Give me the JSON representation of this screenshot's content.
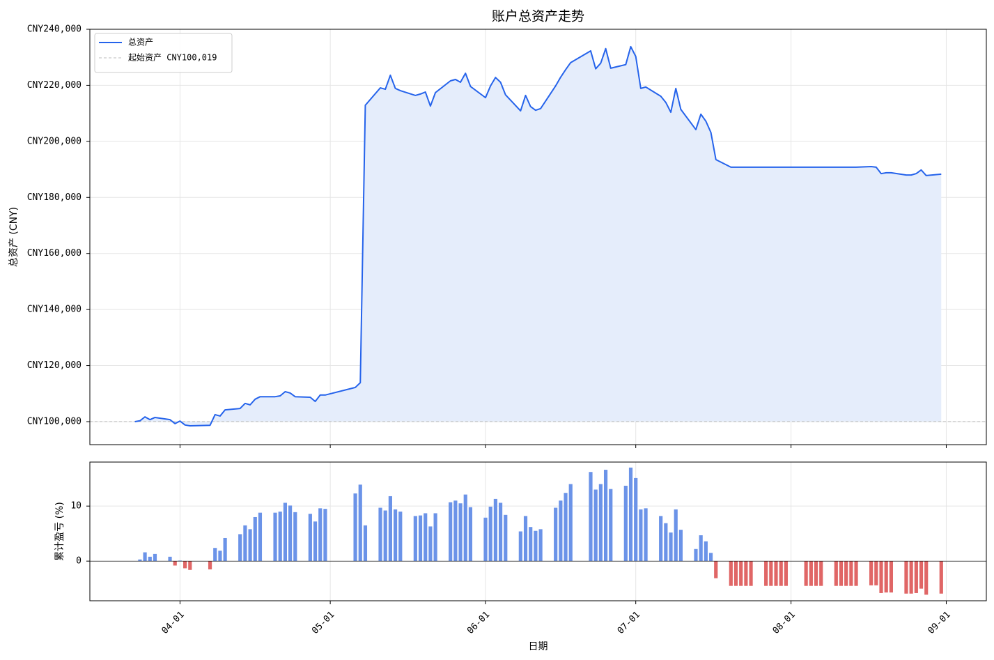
{
  "chart_data": [
    {
      "type": "line",
      "title": "账户总资产走势",
      "y_label": "总资产 (CNY)",
      "x": [
        "03-23",
        "03-24",
        "03-25",
        "03-26",
        "03-27",
        "03-30",
        "03-31",
        "04-01",
        "04-02",
        "04-03",
        "04-07",
        "04-08",
        "04-09",
        "04-10",
        "04-13",
        "04-14",
        "04-15",
        "04-16",
        "04-17",
        "04-20",
        "04-21",
        "04-22",
        "04-23",
        "04-24",
        "04-27",
        "04-28",
        "04-29",
        "04-30",
        "05-06",
        "05-07",
        "05-08",
        "05-11",
        "05-12",
        "05-13",
        "05-14",
        "05-15",
        "05-18",
        "05-19",
        "05-20",
        "05-21",
        "05-22",
        "05-25",
        "05-26",
        "05-27",
        "05-28",
        "05-29",
        "06-01",
        "06-02",
        "06-03",
        "06-04",
        "06-05",
        "06-08",
        "06-09",
        "06-10",
        "06-11",
        "06-12",
        "06-15",
        "06-16",
        "06-17",
        "06-18",
        "06-22",
        "06-23",
        "06-24",
        "06-25",
        "06-26",
        "06-29",
        "06-30",
        "07-01",
        "07-02",
        "07-03",
        "07-06",
        "07-07",
        "07-08",
        "07-09",
        "07-10",
        "07-13",
        "07-14",
        "07-15",
        "07-16",
        "07-17",
        "07-20",
        "07-21",
        "07-22",
        "07-23",
        "07-24",
        "07-27",
        "07-28",
        "07-29",
        "07-30",
        "07-31",
        "08-04",
        "08-05",
        "08-06",
        "08-07",
        "08-10",
        "08-11",
        "08-12",
        "08-13",
        "08-14",
        "08-17",
        "08-18",
        "08-19",
        "08-20",
        "08-21",
        "08-24",
        "08-25",
        "08-26",
        "08-27",
        "08-28",
        "08-31"
      ],
      "series": [
        {
          "name": "总资产",
          "color": "#2563eb",
          "values": [
            100000,
            100300,
            101700,
            100700,
            101500,
            100700,
            99300,
            100200,
            98800,
            98500,
            98700,
            102500,
            102000,
            104200,
            104700,
            106500,
            106000,
            108000,
            108900,
            108900,
            109200,
            110700,
            110200,
            108900,
            108700,
            107200,
            109500,
            109500,
            112200,
            113900,
            212900,
            219100,
            218600,
            223600,
            218900,
            218100,
            216400,
            216900,
            217600,
            212600,
            217400,
            221600,
            222100,
            221100,
            224300,
            219600,
            215600,
            219800,
            222800,
            221100,
            216600,
            210900,
            216400,
            212400,
            211100,
            211700,
            219800,
            222900,
            225600,
            228100,
            232300,
            225900,
            227900,
            233100,
            226100,
            227400,
            233800,
            230300,
            218900,
            219400,
            216100,
            213900,
            210400,
            218900,
            211400,
            204200,
            209700,
            207200,
            203200,
            193500,
            190800,
            190800,
            190800,
            190800,
            190800,
            190800,
            190800,
            190800,
            190800,
            190800,
            190800,
            190800,
            190800,
            190800,
            190800,
            190800,
            190800,
            190800,
            190800,
            191000,
            190800,
            188500,
            188800,
            188800,
            188000,
            188000,
            188500,
            189800,
            187800,
            188300
          ]
        }
      ],
      "baseline": {
        "name": "起始资产 CNY100,019",
        "value": 100019,
        "color": "#bbbbbb"
      },
      "fill_color": "#e5edfb",
      "xlim": [
        "03-14",
        "09-09"
      ],
      "ylim": [
        91790,
        240000
      ],
      "yticks": [
        {
          "value": 100000,
          "label": "CNY100,000"
        },
        {
          "value": 120000,
          "label": "CNY120,000"
        },
        {
          "value": 140000,
          "label": "CNY140,000"
        },
        {
          "value": 160000,
          "label": "CNY160,000"
        },
        {
          "value": 180000,
          "label": "CNY180,000"
        },
        {
          "value": 200000,
          "label": "CNY200,000"
        },
        {
          "value": 220000,
          "label": "CNY220,000"
        },
        {
          "value": 240000,
          "label": "CNY240,000"
        }
      ],
      "grid": true,
      "legend": "upper left"
    },
    {
      "type": "bar",
      "y_label": "累计盈亏 (%)",
      "x_label": "日期",
      "x": [
        "03-23",
        "03-24",
        "03-25",
        "03-26",
        "03-27",
        "03-30",
        "03-31",
        "04-01",
        "04-02",
        "04-03",
        "04-07",
        "04-08",
        "04-09",
        "04-10",
        "04-13",
        "04-14",
        "04-15",
        "04-16",
        "04-17",
        "04-20",
        "04-21",
        "04-22",
        "04-23",
        "04-24",
        "04-27",
        "04-28",
        "04-29",
        "04-30",
        "05-06",
        "05-07",
        "05-08",
        "05-11",
        "05-12",
        "05-13",
        "05-14",
        "05-15",
        "05-18",
        "05-19",
        "05-20",
        "05-21",
        "05-22",
        "05-25",
        "05-26",
        "05-27",
        "05-28",
        "05-29",
        "06-01",
        "06-02",
        "06-03",
        "06-04",
        "06-05",
        "06-08",
        "06-09",
        "06-10",
        "06-11",
        "06-12",
        "06-15",
        "06-16",
        "06-17",
        "06-18",
        "06-22",
        "06-23",
        "06-24",
        "06-25",
        "06-26",
        "06-29",
        "06-30",
        "07-01",
        "07-02",
        "07-03",
        "07-06",
        "07-07",
        "07-08",
        "07-09",
        "07-10",
        "07-13",
        "07-14",
        "07-15",
        "07-16",
        "07-17",
        "07-20",
        "07-21",
        "07-22",
        "07-23",
        "07-24",
        "07-27",
        "07-28",
        "07-29",
        "07-30",
        "07-31",
        "08-04",
        "08-05",
        "08-06",
        "08-07",
        "08-10",
        "08-11",
        "08-12",
        "08-13",
        "08-14",
        "08-17",
        "08-18",
        "08-19",
        "08-20",
        "08-21",
        "08-24",
        "08-25",
        "08-26",
        "08-27",
        "08-28",
        "08-31"
      ],
      "values": [
        0,
        0.3,
        1.6,
        0.8,
        1.3,
        0.8,
        -0.8,
        0.1,
        -1.3,
        -1.6,
        -1.5,
        2.4,
        1.9,
        4.2,
        4.9,
        6.5,
        5.8,
        8.0,
        8.8,
        8.8,
        9.0,
        10.6,
        10.1,
        8.9,
        8.6,
        7.2,
        9.6,
        9.5,
        12.3,
        13.9,
        6.5,
        9.7,
        9.2,
        11.8,
        9.4,
        9.0,
        8.2,
        8.3,
        8.7,
        6.3,
        8.7,
        10.7,
        11.0,
        10.5,
        12.1,
        9.8,
        7.9,
        9.9,
        11.3,
        10.6,
        8.4,
        5.4,
        8.2,
        6.2,
        5.5,
        5.8,
        9.7,
        11.0,
        12.4,
        14.0,
        16.2,
        13.0,
        14.0,
        16.6,
        13.1,
        13.7,
        17.0,
        15.1,
        9.4,
        9.6,
        8.2,
        6.9,
        5.2,
        9.4,
        5.7,
        2.2,
        4.7,
        3.6,
        1.5,
        -3.1,
        -4.5,
        -4.5,
        -4.5,
        -4.5,
        -4.5,
        -4.5,
        -4.5,
        -4.5,
        -4.5,
        -4.5,
        -4.5,
        -4.5,
        -4.5,
        -4.5,
        -4.5,
        -4.5,
        -4.5,
        -4.5,
        -4.5,
        -4.4,
        -4.4,
        -5.8,
        -5.7,
        -5.7,
        -5.9,
        -5.9,
        -5.8,
        -5.0,
        -6.1,
        -5.9
      ],
      "positive_color": "#6b93e8",
      "negative_color": "#e06666",
      "xlim": [
        "03-14",
        "09-09"
      ],
      "xticks": [
        "04-01",
        "05-01",
        "06-01",
        "07-01",
        "08-01",
        "09-01"
      ],
      "ylim": [
        -7.2,
        18
      ],
      "yticks": [
        0,
        10
      ],
      "grid": true
    }
  ]
}
